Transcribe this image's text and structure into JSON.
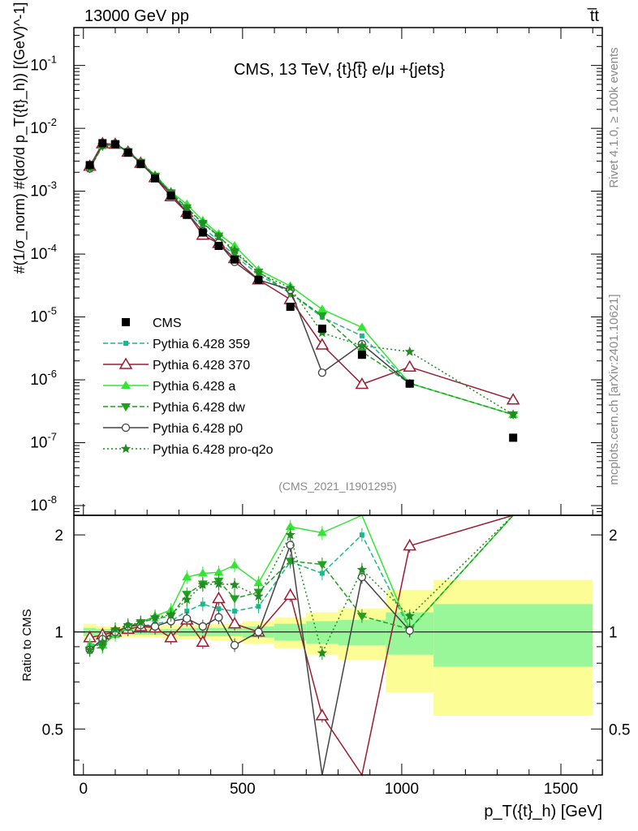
{
  "header": {
    "left": "13000 GeV pp",
    "right": "t̅t"
  },
  "side_labels": {
    "top": "Rivet 4.1.0, ≥ 100k events",
    "bottom": "mcplots.cern.ch [arXiv:2401.10621]"
  },
  "chart_data": {
    "type": "line",
    "title": "CMS, 13 TeV, {t}{t̅} e/μ +{jets}",
    "watermark": "(CMS_2021_I1901295)",
    "xlabel": "p_T({t}_h) [GeV]",
    "ylabel": "#(1/σ_norm) #(dσ/d p_T({t}_h)) [(GeV)^-1]",
    "ratio_ylabel": "Ratio to CMS",
    "xlim": [
      -30,
      1630
    ],
    "ylim": [
      7e-09,
      0.4
    ],
    "ratio_ylim": [
      0.36,
      2.3
    ],
    "log_y": true,
    "x_ticks": [
      0,
      500,
      1000,
      1500
    ],
    "y_ticks": [
      "10^-8",
      "10^-7",
      "10^-6",
      "10^-5",
      "10^-4",
      "10^-3",
      "10^-2",
      "10^-1"
    ],
    "ratio_ticks": [
      "0.5",
      "1",
      "2"
    ],
    "x": [
      20,
      60,
      100,
      140,
      180,
      225,
      275,
      325,
      375,
      425,
      475,
      550,
      650,
      750,
      875,
      1025,
      1350
    ],
    "series": [
      {
        "name": "CMS",
        "values": [
          0.0026,
          0.0058,
          0.0056,
          0.0041,
          0.0027,
          0.0016,
          0.00085,
          0.00042,
          0.00022,
          0.000135,
          8.2e-05,
          3.9e-05,
          1.45e-05,
          6.5e-06,
          2.5e-06,
          8.7e-07,
          1.2e-07
        ]
      },
      {
        "name": "Pythia 6.428 359",
        "values": [
          0.0024,
          0.0054,
          0.0055,
          0.0042,
          0.0028,
          0.0017,
          0.00092,
          0.00049,
          0.00027,
          0.00016,
          9.5e-05,
          4.7e-05,
          2.4e-05,
          9.9e-06,
          5e-06,
          8.8e-07,
          2.8e-07
        ]
      },
      {
        "name": "Pythia 6.428 370",
        "values": [
          0.0025,
          0.0057,
          0.0056,
          0.0042,
          0.0028,
          0.00165,
          0.00082,
          0.00046,
          0.0002,
          0.000148,
          8.5e-05,
          3.9e-05,
          1.9e-05,
          3.6e-06,
          8.5e-07,
          1.6e-06,
          4.8e-07
        ]
      },
      {
        "name": "Pythia 6.428 a",
        "values": [
          0.0024,
          0.0053,
          0.0055,
          0.0042,
          0.0029,
          0.0018,
          0.00098,
          0.00062,
          0.00034,
          0.00021,
          0.000135,
          5.6e-05,
          3.1e-05,
          1.32e-05,
          6.8e-06,
          8.8e-07,
          2.8e-07
        ]
      },
      {
        "name": "Pythia 6.428 dw",
        "values": [
          0.0023,
          0.0052,
          0.0056,
          0.0043,
          0.0029,
          0.00175,
          0.00095,
          0.00055,
          0.00031,
          0.000196,
          0.000105,
          5.2e-05,
          2.4e-05,
          1.05e-05,
          2.8e-06,
          8.8e-07,
          2.8e-07
        ]
      },
      {
        "name": "Pythia 6.428 p0",
        "values": [
          0.0023,
          0.0055,
          0.0056,
          0.0043,
          0.00285,
          0.00165,
          0.00092,
          0.00046,
          0.00023,
          0.00015,
          7.5e-05,
          3.9e-05,
          2.7e-05,
          1.3e-06,
          3.7e-06,
          8.7e-07,
          null
        ]
      },
      {
        "name": "Pythia 6.428 pro-q2o",
        "values": [
          0.0023,
          0.0054,
          0.0057,
          0.0043,
          0.0029,
          0.00178,
          0.00096,
          0.00053,
          0.00031,
          0.00019,
          0.000115,
          5e-05,
          2.9e-05,
          5.6e-06,
          3.5e-06,
          2.8e-06,
          2.8e-07
        ]
      }
    ],
    "ratio_series": [
      {
        "name": "Pythia 6.428 359",
        "values": [
          0.91,
          0.93,
          0.99,
          1.02,
          1.04,
          1.06,
          1.08,
          1.16,
          1.22,
          1.18,
          1.16,
          1.2,
          1.65,
          1.52,
          2.0,
          1.02,
          2.33
        ]
      },
      {
        "name": "Pythia 6.428 370",
        "values": [
          0.96,
          0.98,
          1.0,
          1.02,
          1.04,
          1.03,
          0.96,
          1.09,
          0.93,
          1.27,
          1.06,
          1.0,
          1.3,
          0.55,
          0.34,
          1.85,
          4.0
        ]
      },
      {
        "name": "Pythia 6.428 a",
        "values": [
          0.91,
          0.91,
          0.98,
          1.03,
          1.07,
          1.12,
          1.17,
          1.48,
          1.52,
          1.53,
          1.61,
          1.42,
          2.12,
          2.03,
          2.6,
          1.02,
          2.33
        ]
      },
      {
        "name": "Pythia 6.428 dw",
        "values": [
          0.88,
          0.9,
          1.0,
          1.04,
          1.07,
          1.1,
          1.12,
          1.31,
          1.41,
          1.44,
          1.27,
          1.33,
          1.66,
          1.62,
          1.12,
          1.02,
          2.33
        ]
      },
      {
        "name": "Pythia 6.428 p0",
        "values": [
          0.88,
          0.95,
          1.0,
          1.04,
          1.05,
          1.04,
          1.08,
          1.1,
          1.04,
          1.11,
          0.91,
          1.0,
          1.86,
          0.2,
          1.48,
          1.01,
          null
        ]
      },
      {
        "name": "Pythia 6.428 pro-q2o",
        "values": [
          0.88,
          0.93,
          1.02,
          1.05,
          1.07,
          1.11,
          1.13,
          1.26,
          1.4,
          1.41,
          1.4,
          1.29,
          2.0,
          0.86,
          1.56,
          1.12,
          2.33
        ]
      }
    ],
    "uncertainty_bands": {
      "edges": [
        0,
        40,
        80,
        120,
        160,
        200,
        250,
        300,
        350,
        400,
        450,
        500,
        600,
        700,
        800,
        950,
        1100,
        1600
      ],
      "inner": [
        0.03,
        0.02,
        0.02,
        0.02,
        0.02,
        0.02,
        0.02,
        0.03,
        0.03,
        0.03,
        0.03,
        0.04,
        0.06,
        0.08,
        0.09,
        0.15,
        0.22
      ],
      "outer": [
        0.06,
        0.04,
        0.04,
        0.04,
        0.04,
        0.04,
        0.05,
        0.05,
        0.05,
        0.06,
        0.06,
        0.08,
        0.11,
        0.15,
        0.18,
        0.35,
        0.45
      ]
    },
    "colors": {
      "CMS": "#000000",
      "Pythia 6.428 359": "#1ab98c",
      "Pythia 6.428 370": "#9b1b30",
      "Pythia 6.428 a": "#33e633",
      "Pythia 6.428 dw": "#1fa21f",
      "Pythia 6.428 p0": "#444444",
      "Pythia 6.428 pro-q2o": "#228b22",
      "band_inner": "#99f799",
      "band_outer": "#fdfd96"
    }
  }
}
